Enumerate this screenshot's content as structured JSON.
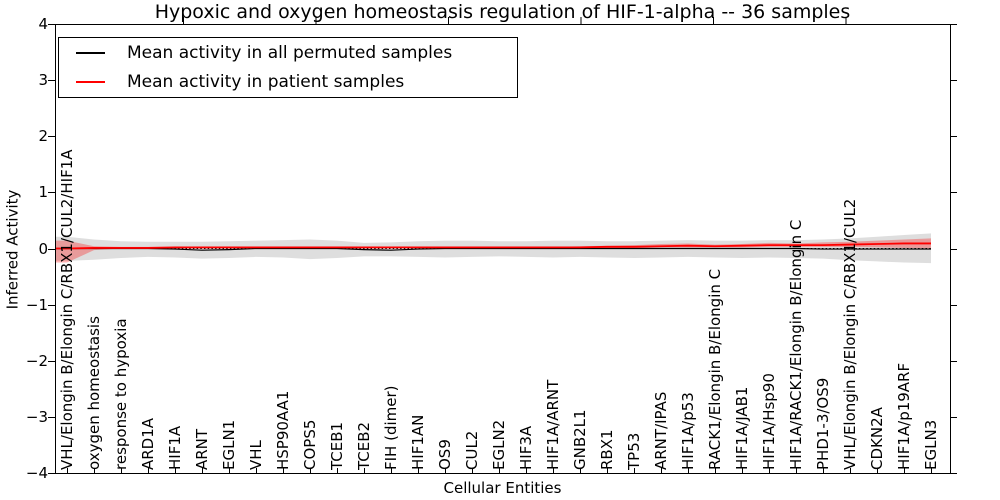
{
  "title": "Hypoxic and oxygen homeostasis regulation of HIF-1-alpha -- 36 samples",
  "legend": {
    "entries": [
      {
        "label": "Mean activity in all permuted samples",
        "color": "#000000"
      },
      {
        "label": "Mean activity in patient samples",
        "color": "#ff0000"
      }
    ],
    "position": "upper left"
  },
  "chart_data": {
    "type": "line",
    "title": "Hypoxic and oxygen homeostasis regulation of HIF-1-alpha -- 36 samples",
    "xlabel": "Cellular Entities",
    "ylabel": "Inferred Activity",
    "ylim": [
      -4,
      4
    ],
    "yticks": [
      -4,
      -3,
      -2,
      -1,
      0,
      1,
      2,
      3,
      4
    ],
    "yticklabels": [
      "−4",
      "−3",
      "−2",
      "−1",
      "0",
      "1",
      "2",
      "3",
      "4"
    ],
    "grid": false,
    "zero_line": true,
    "legend_position": "upper left",
    "categories": [
      "VHL/Elongin B/Elongin C/RBX1/CUL2/HIF1A",
      "oxygen homeostasis",
      "response to hypoxia",
      "ARD1A",
      "HIF1A",
      "ARNT",
      "EGLN1",
      "VHL",
      "HSP90AA1",
      "COPS5",
      "TCEB1",
      "TCEB2",
      "FIH (dimer)",
      "HIF1AN",
      "OS9",
      "CUL2",
      "EGLN2",
      "HIF3A",
      "HIF1A/ARNT",
      "GNB2L1",
      "RBX1",
      "TP53",
      "ARNT/IPAS",
      "HIF1A/p53",
      "RACK1/Elongin B/Elongin C",
      "HIF1A/JAB1",
      "HIF1A/Hsp90",
      "HIF1A/RACK1/Elongin B/Elongin C",
      "PHD1-3/OS9",
      "VHL/Elongin B/Elongin C/RBX1/CUL2",
      "CDKN2A",
      "HIF1A/p19ARF",
      "EGLN3"
    ],
    "series": [
      {
        "name": "Mean activity in all permuted samples",
        "color": "#000000",
        "values": [
          0,
          0,
          0,
          0,
          -0.01,
          -0.03,
          -0.02,
          0,
          0,
          0,
          0,
          -0.02,
          -0.03,
          -0.01,
          0,
          0,
          0,
          0,
          0,
          0,
          0,
          0,
          0,
          0,
          0,
          0,
          0,
          0,
          -0.01,
          -0.01,
          -0.01,
          -0.01,
          -0.01
        ],
        "band": {
          "fill": "rgba(0,0,0,0.13)",
          "upper": [
            0.21,
            0.16,
            0.13,
            0.12,
            0.12,
            0.12,
            0.13,
            0.14,
            0.15,
            0.16,
            0.14,
            0.1,
            0.11,
            0.13,
            0.14,
            0.14,
            0.13,
            0.13,
            0.14,
            0.14,
            0.13,
            0.13,
            0.14,
            0.15,
            0.14,
            0.14,
            0.15,
            0.15,
            0.16,
            0.18,
            0.21,
            0.24,
            0.27
          ],
          "lower": [
            -0.22,
            -0.2,
            -0.17,
            -0.15,
            -0.16,
            -0.18,
            -0.17,
            -0.15,
            -0.16,
            -0.19,
            -0.17,
            -0.14,
            -0.14,
            -0.15,
            -0.16,
            -0.15,
            -0.14,
            -0.15,
            -0.16,
            -0.15,
            -0.16,
            -0.17,
            -0.16,
            -0.15,
            -0.16,
            -0.17,
            -0.16,
            -0.17,
            -0.18,
            -0.21,
            -0.23,
            -0.25,
            -0.26
          ]
        }
      },
      {
        "name": "Mean activity in patient samples",
        "color": "#ff0000",
        "values": [
          0.0,
          0.01,
          0.01,
          0.01,
          0.02,
          0.02,
          0.02,
          0.02,
          0.02,
          0.02,
          0.02,
          0.02,
          0.02,
          0.02,
          0.02,
          0.02,
          0.02,
          0.02,
          0.02,
          0.02,
          0.03,
          0.03,
          0.04,
          0.05,
          0.04,
          0.05,
          0.06,
          0.06,
          0.06,
          0.07,
          0.08,
          0.09,
          0.09
        ],
        "band": {
          "fill": "rgba(255,0,0,0.30)",
          "upper": [
            0.14,
            0.04,
            0.03,
            0.03,
            0.03,
            0.03,
            0.03,
            0.03,
            0.03,
            0.03,
            0.03,
            0.03,
            0.03,
            0.03,
            0.03,
            0.03,
            0.03,
            0.03,
            0.03,
            0.04,
            0.05,
            0.06,
            0.08,
            0.09,
            0.07,
            0.08,
            0.1,
            0.09,
            0.11,
            0.12,
            0.14,
            0.16,
            0.18
          ],
          "lower": [
            -0.25,
            -0.03,
            0.0,
            0.0,
            0.0,
            0.0,
            0.0,
            0.0,
            0.01,
            0.01,
            0.01,
            0.0,
            0.01,
            0.01,
            0.01,
            0.01,
            0.01,
            0.01,
            0.01,
            0.01,
            0.01,
            0.01,
            0.02,
            0.02,
            0.02,
            0.02,
            0.03,
            0.03,
            0.03,
            0.03,
            0.02,
            0.01,
            0.0
          ]
        }
      }
    ]
  }
}
